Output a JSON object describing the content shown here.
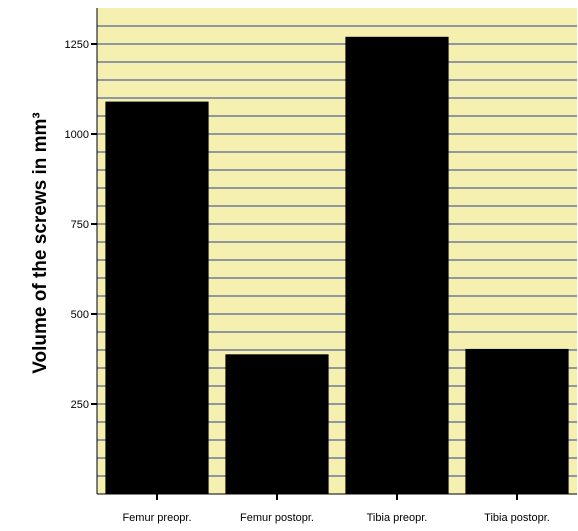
{
  "chart_data": {
    "type": "bar",
    "categories": [
      "Femur preopr.",
      "Femur postopr.",
      "Tibia preopr.",
      "Tibia postopr."
    ],
    "values": [
      1090,
      388,
      1270,
      403
    ],
    "title": "",
    "xlabel": "",
    "ylabel": "Volume of the screws in mm³",
    "ylim": [
      0,
      1350
    ],
    "yticks": [
      250,
      500,
      750,
      1000,
      1250
    ],
    "grid": true,
    "colors": {
      "background": "#f5efb0",
      "gridline": "#2b3f8c",
      "bar": "#000000"
    }
  }
}
